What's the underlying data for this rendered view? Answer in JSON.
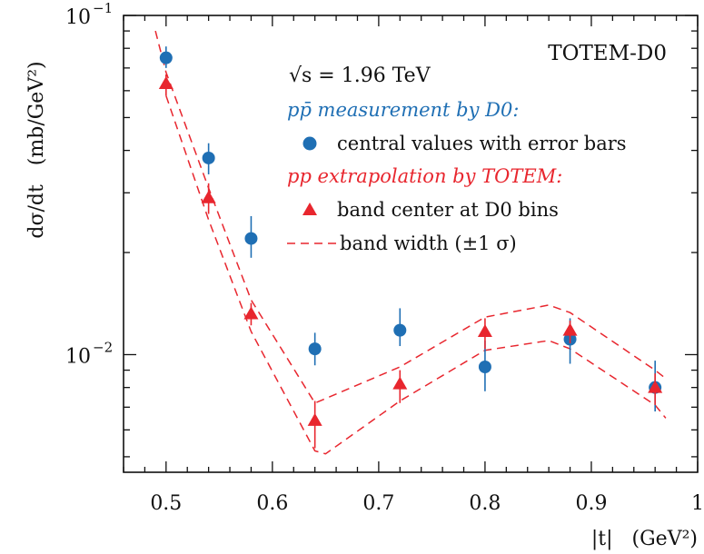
{
  "chart_data": {
    "type": "scatter",
    "title": "",
    "corner_label": "TOTEM-D0",
    "energy_label": "√s = 1.96 TeV",
    "xlabel": "|t|   (GeV²)",
    "ylabel": "dσ/dt   (mb/GeV²)",
    "xlim": [
      0.46,
      1.0
    ],
    "ylim": [
      0.0045,
      0.1
    ],
    "yscale": "log",
    "x_tick_labels": [
      "0.5",
      "0.6",
      "0.7",
      "0.8",
      "0.9",
      "1"
    ],
    "y_tick_labels": [
      {
        "base": "10",
        "exp": "−2",
        "value": 0.01
      },
      {
        "base": "10",
        "exp": "−1",
        "value": 0.1
      }
    ],
    "colors": {
      "d0": "#1f6fb4",
      "totem": "#e8262e"
    },
    "legend": {
      "d0_header": "pp̄ measurement by D0:",
      "d0_entry": "central values with error bars",
      "totem_header": "pp extrapolation by TOTEM:",
      "totem_entry": "band center at D0 bins",
      "band_entry": "band width (±1 σ)"
    },
    "series": [
      {
        "name": "central values with error bars",
        "marker": "circle",
        "x": [
          0.5,
          0.54,
          0.58,
          0.64,
          0.72,
          0.8,
          0.88,
          0.96
        ],
        "y": [
          0.075,
          0.038,
          0.022,
          0.0104,
          0.0118,
          0.0092,
          0.0111,
          0.008
        ],
        "err_low": [
          0.07,
          0.034,
          0.0193,
          0.0093,
          0.0106,
          0.0078,
          0.0094,
          0.0068
        ],
        "err_high": [
          0.081,
          0.042,
          0.0256,
          0.0116,
          0.0137,
          0.011,
          0.0128,
          0.0096
        ]
      },
      {
        "name": "band center at D0 bins",
        "marker": "triangle",
        "x": [
          0.5,
          0.54,
          0.58,
          0.64,
          0.72,
          0.8,
          0.88,
          0.96
        ],
        "y": [
          0.063,
          0.029,
          0.0132,
          0.0064,
          0.0082,
          0.0117,
          0.0118,
          0.008
        ],
        "err_low": [
          0.058,
          0.026,
          0.0122,
          0.0053,
          0.0072,
          0.0104,
          0.0108,
          0.0071
        ],
        "err_high": [
          0.067,
          0.032,
          0.0142,
          0.0073,
          0.009,
          0.0128,
          0.0126,
          0.0088
        ]
      }
    ],
    "band": {
      "name": "band width (±1 σ)",
      "x": [
        0.49,
        0.5,
        0.54,
        0.58,
        0.64,
        0.72,
        0.8,
        0.86,
        0.88,
        0.96,
        0.97
      ],
      "upper": [
        0.09,
        0.068,
        0.031,
        0.0145,
        0.0072,
        0.0092,
        0.0129,
        0.014,
        0.0133,
        0.009,
        0.0085
      ],
      "lower": [
        null,
        0.058,
        0.025,
        0.0117,
        0.0052,
        0.0073,
        0.0103,
        0.011,
        0.0104,
        0.0071,
        0.0065
      ],
      "lower_extra": [
        [
          0.65,
          0.0051
        ]
      ]
    }
  }
}
